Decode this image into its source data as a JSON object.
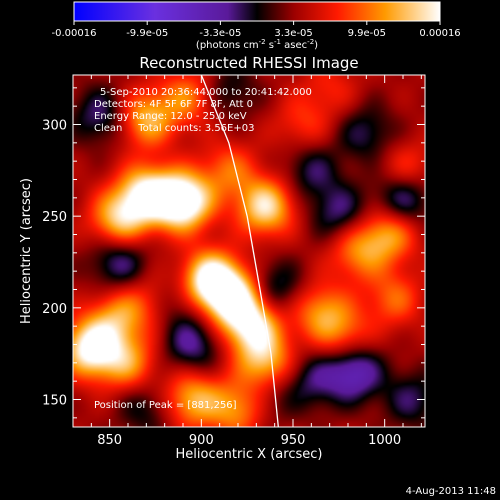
{
  "chart_data": {
    "type": "heatmap",
    "title": "Reconstructed RHESSI Image",
    "xlabel": "Heliocentric X (arcsec)",
    "ylabel": "Heliocentric Y (arcsec)",
    "xlim": [
      830,
      1022
    ],
    "ylim": [
      135,
      327
    ],
    "x_ticks": [
      850,
      900,
      950,
      1000
    ],
    "y_ticks": [
      150,
      200,
      250,
      300
    ],
    "colorbar": {
      "ticks": [
        "-0.00016",
        "-9.9e-05",
        "-3.3e-05",
        "3.3e-05",
        "9.9e-05",
        "0.00016"
      ],
      "label_main": "(photons cm",
      "label_exp1": "-2",
      "label_mid": " s",
      "label_exp2": "-1",
      "label_end": " asec",
      "label_exp3": "-2",
      "label_close": ")",
      "range": [
        -0.00016,
        0.00016
      ]
    },
    "annotations": [
      "5-Sep-2010 20:36:44.000 to 20:41:42.000",
      "Detectors: 4F 5F 6F 7F 8F, Att 0",
      "Energy Range: 12.0 - 25.0 keV",
      "Clean     Total counts: 3.56E+03"
    ],
    "peak_label": "Position of Peak = [881,256]",
    "peak": [
      881,
      256
    ],
    "limb_arc": [
      [
        900,
        327
      ],
      [
        915,
        290
      ],
      [
        925,
        250
      ],
      [
        932,
        210
      ],
      [
        938,
        175
      ],
      [
        942,
        135
      ]
    ],
    "sources": [
      {
        "x": 890,
        "y": 258,
        "v": 1.0
      },
      {
        "x": 870,
        "y": 262,
        "v": 0.75
      },
      {
        "x": 855,
        "y": 248,
        "v": 0.6
      },
      {
        "x": 905,
        "y": 215,
        "v": 0.9
      },
      {
        "x": 918,
        "y": 205,
        "v": 0.75
      },
      {
        "x": 928,
        "y": 190,
        "v": 0.7
      },
      {
        "x": 935,
        "y": 170,
        "v": 0.55
      },
      {
        "x": 935,
        "y": 255,
        "v": 0.7
      },
      {
        "x": 915,
        "y": 275,
        "v": 0.35
      },
      {
        "x": 840,
        "y": 178,
        "v": 0.85
      },
      {
        "x": 860,
        "y": 170,
        "v": 0.45
      },
      {
        "x": 895,
        "y": 150,
        "v": 0.55
      },
      {
        "x": 920,
        "y": 145,
        "v": 0.5
      },
      {
        "x": 855,
        "y": 195,
        "v": 0.45
      },
      {
        "x": 875,
        "y": 205,
        "v": 0.3
      },
      {
        "x": 870,
        "y": 303,
        "v": 0.55
      },
      {
        "x": 893,
        "y": 315,
        "v": 0.4
      },
      {
        "x": 965,
        "y": 198,
        "v": 0.45
      },
      {
        "x": 978,
        "y": 185,
        "v": 0.35
      },
      {
        "x": 985,
        "y": 230,
        "v": 0.4
      },
      {
        "x": 1002,
        "y": 240,
        "v": 0.5
      },
      {
        "x": 1012,
        "y": 275,
        "v": 0.3
      },
      {
        "x": 1005,
        "y": 205,
        "v": 0.35
      },
      {
        "x": 955,
        "y": 300,
        "v": 0.25
      },
      {
        "x": 970,
        "y": 320,
        "v": 0.2
      },
      {
        "x": 940,
        "y": 210,
        "v": -0.35
      },
      {
        "x": 855,
        "y": 225,
        "v": -0.4
      },
      {
        "x": 845,
        "y": 305,
        "v": -0.35
      },
      {
        "x": 895,
        "y": 180,
        "v": -0.4
      },
      {
        "x": 885,
        "y": 205,
        "v": -0.3
      },
      {
        "x": 960,
        "y": 160,
        "v": -0.3
      },
      {
        "x": 983,
        "y": 165,
        "v": -0.55
      },
      {
        "x": 1010,
        "y": 260,
        "v": -0.45
      },
      {
        "x": 960,
        "y": 275,
        "v": -0.3
      },
      {
        "x": 975,
        "y": 252,
        "v": -0.35
      },
      {
        "x": 870,
        "y": 145,
        "v": -0.25
      },
      {
        "x": 990,
        "y": 295,
        "v": -0.3
      },
      {
        "x": 915,
        "y": 318,
        "v": -0.25
      },
      {
        "x": 1015,
        "y": 150,
        "v": -0.3
      },
      {
        "x": 935,
        "y": 150,
        "v": -0.2
      }
    ]
  },
  "footer": {
    "timestamp": "4-Aug-2013 11:48"
  }
}
